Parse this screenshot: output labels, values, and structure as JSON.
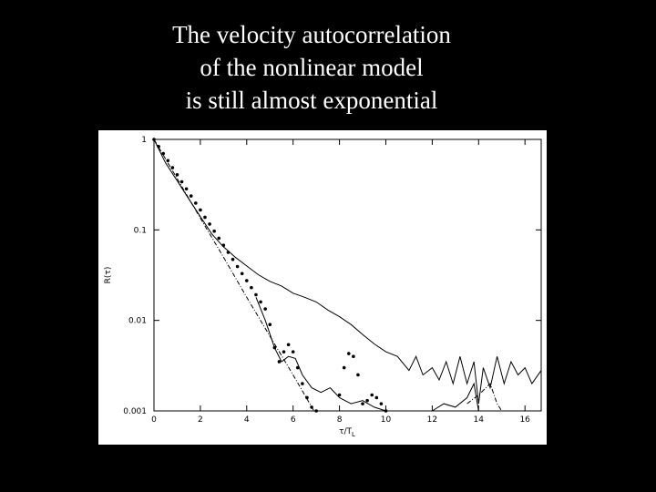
{
  "chart_data": {
    "type": "line",
    "title_lines": [
      "The velocity autocorrelation",
      "of the nonlinear model",
      "is still almost exponential"
    ],
    "y_label": "R(τ)",
    "x_label": "τ/T",
    "x_label_sub": "L",
    "log_y": true,
    "xlim": [
      0,
      16.7
    ],
    "ylim": [
      0.001,
      1
    ],
    "xticks": [
      0,
      2,
      4,
      6,
      8,
      10,
      12,
      14,
      16
    ],
    "yticks": [
      0.001,
      0.01,
      0.1,
      1
    ],
    "series": [
      {
        "style": "markers",
        "color": "#000000",
        "x": [
          0,
          0.2,
          0.4,
          0.6,
          0.8,
          1.0,
          1.2,
          1.4,
          1.6,
          1.8,
          2.0,
          2.2,
          2.4,
          2.6,
          2.8,
          3.0,
          3.2,
          3.4,
          3.6,
          3.8,
          4.0,
          4.2,
          4.4,
          4.6,
          4.8,
          5.0,
          5.2,
          5.4,
          5.6,
          5.8,
          6.0,
          6.2,
          6.4,
          6.6,
          6.8,
          7.0,
          8.0,
          8.2,
          8.4,
          8.6,
          8.8,
          9.0,
          9.2,
          9.4,
          9.6,
          9.8,
          10.0
        ],
        "values": [
          1,
          0.835,
          0.698,
          0.583,
          0.487,
          0.407,
          0.34,
          0.284,
          0.237,
          0.198,
          0.166,
          0.138,
          0.116,
          0.0968,
          0.0809,
          0.0676,
          0.0565,
          0.0472,
          0.0394,
          0.0329,
          0.0275,
          0.023,
          0.0192,
          0.016,
          0.0134,
          0.009,
          0.005,
          0.0035,
          0.0045,
          0.0054,
          0.0045,
          0.003,
          0.002,
          0.0014,
          0.0011,
          0.001,
          0.0015,
          0.003,
          0.0043,
          0.004,
          0.0025,
          0.0012,
          0.0013,
          0.0015,
          0.0014,
          0.0012,
          0.001
        ]
      },
      {
        "style": "dashdot",
        "color": "#000000",
        "x": [
          0,
          1,
          2,
          3,
          4,
          5,
          6,
          6.9,
          12.8,
          13.5,
          14,
          14.5,
          14.8,
          15
        ],
        "values": [
          1,
          0.37,
          0.135,
          0.05,
          0.018,
          0.0067,
          0.0025,
          0.001,
          null,
          0.0012,
          0.0015,
          0.002,
          0.0012,
          0.001
        ]
      },
      {
        "style": "solid",
        "color": "#000000",
        "x": [
          0,
          0.5,
          1,
          1.5,
          2,
          2.5,
          3,
          3.5,
          4,
          4.5,
          5,
          5.5,
          6,
          6.5,
          7,
          7.5,
          8,
          8.5,
          9,
          9.5,
          10,
          10.5,
          11,
          11.3,
          11.6,
          12,
          12.3,
          12.6,
          12.9,
          13.2,
          13.5,
          13.8,
          14,
          14.2,
          14.5,
          14.8,
          15.1,
          15.4,
          15.7,
          16,
          16.3,
          16.7
        ],
        "values": [
          1,
          0.55,
          0.35,
          0.22,
          0.14,
          0.09,
          0.065,
          0.05,
          0.04,
          0.032,
          0.027,
          0.024,
          0.02,
          0.018,
          0.016,
          0.013,
          0.011,
          0.009,
          0.007,
          0.0055,
          0.0045,
          0.004,
          0.0028,
          0.004,
          0.0025,
          0.003,
          0.0022,
          0.0035,
          0.002,
          0.004,
          0.002,
          0.0035,
          0.0012,
          0.003,
          0.0018,
          0.004,
          0.002,
          0.0035,
          0.0025,
          0.003,
          0.002,
          0.0028
        ]
      },
      {
        "style": "solid",
        "color": "#000000",
        "x": [
          4.4,
          4.8,
          5.2,
          5.5,
          5.8,
          6.1,
          6.4,
          6.8,
          7.2,
          7.6,
          8,
          8.5,
          9,
          9.5,
          10,
          11,
          12,
          12.5,
          13,
          13.5,
          13.8,
          14
        ],
        "values": [
          0.018,
          0.01,
          0.005,
          0.0035,
          0.004,
          0.0038,
          0.0025,
          0.0018,
          0.0016,
          0.0018,
          0.0014,
          0.0012,
          0.0013,
          0.0011,
          0.001,
          null,
          0.001,
          0.0012,
          0.0011,
          0.0014,
          0.002,
          0.001
        ]
      }
    ]
  }
}
